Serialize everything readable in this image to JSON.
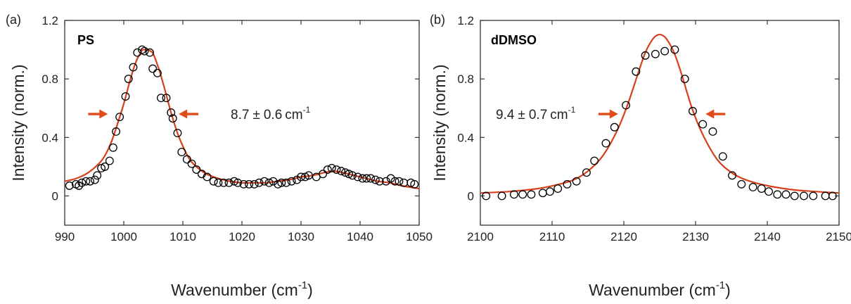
{
  "colors": {
    "fit": "#d6401c",
    "arrow": "#e14b18",
    "marker": "#000000",
    "axis": "#222222"
  },
  "chart_data": [
    {
      "type": "scatter",
      "panel_label": "(a)",
      "sample_label": "PS",
      "annotation": {
        "value": "8.7",
        "pm": "±",
        "err": "0.6",
        "unit": "cm",
        "unit_exp": "-1",
        "y": 0.56,
        "left_arrow_x": 997.3,
        "right_arrow_x": 1009.3
      },
      "xlabel": {
        "text": "Wavenumber (cm",
        "sup": "-1",
        "close": ")"
      },
      "ylabel": "Intensity (norm.)",
      "xlim": [
        990,
        1050
      ],
      "ylim": [
        -0.2,
        1.2
      ],
      "xticks": [
        "990",
        "1000",
        "1010",
        "1020",
        "1030",
        "1040",
        "1050"
      ],
      "yticks": [
        "0",
        "0.4",
        "0.8",
        "1.2"
      ],
      "series": [
        {
          "kind": "markers",
          "x": [
            990.8,
            991.9,
            992.4,
            992.9,
            993.6,
            994.3,
            995.1,
            995.5,
            996.2,
            996.8,
            997.6,
            998.2,
            998.7,
            999.3,
            1000.3,
            1000.8,
            1001.6,
            1002.3,
            1003.1,
            1003.5,
            1004.4,
            1004.9,
            1005.7,
            1006.3,
            1007.2,
            1008.0,
            1008.3,
            1009.1,
            1009.8,
            1010.7,
            1011.5,
            1012.3,
            1013.2,
            1014.1,
            1015.2,
            1016.0,
            1016.9,
            1017.8,
            1018.7,
            1019.3,
            1020.3,
            1021.2,
            1022.1,
            1022.9,
            1023.8,
            1024.6,
            1025.3,
            1026.1,
            1026.7,
            1027.5,
            1028.4,
            1029.3,
            1030.0,
            1030.7,
            1031.3,
            1032.6,
            1033.7,
            1034.5,
            1035.2,
            1036.0,
            1036.8,
            1037.5,
            1038.1,
            1038.7,
            1039.6,
            1040.4,
            1041.1,
            1041.8,
            1042.6,
            1043.3,
            1044.4,
            1045.2,
            1045.9,
            1046.6,
            1047.4,
            1048.6,
            1049.2
          ],
          "y": [
            0.07,
            0.08,
            0.07,
            0.09,
            0.1,
            0.1,
            0.11,
            0.14,
            0.19,
            0.2,
            0.24,
            0.33,
            0.44,
            0.54,
            0.68,
            0.8,
            0.88,
            0.98,
            1.0,
            0.99,
            0.98,
            0.87,
            0.84,
            0.67,
            0.67,
            0.57,
            0.53,
            0.43,
            0.3,
            0.25,
            0.22,
            0.18,
            0.15,
            0.13,
            0.1,
            0.09,
            0.09,
            0.09,
            0.1,
            0.09,
            0.08,
            0.08,
            0.08,
            0.09,
            0.1,
            0.09,
            0.1,
            0.08,
            0.09,
            0.09,
            0.1,
            0.11,
            0.13,
            0.13,
            0.14,
            0.13,
            0.15,
            0.18,
            0.19,
            0.18,
            0.17,
            0.16,
            0.15,
            0.14,
            0.13,
            0.12,
            0.12,
            0.12,
            0.11,
            0.1,
            0.1,
            0.12,
            0.1,
            0.1,
            0.09,
            0.09,
            0.08
          ]
        },
        {
          "kind": "line",
          "x": [
            990,
            992,
            994,
            996,
            997,
            998,
            999,
            1000,
            1001,
            1002,
            1003,
            1003.5,
            1004,
            1004.5,
            1005,
            1006,
            1007,
            1008,
            1009,
            1010,
            1011,
            1012,
            1014,
            1016,
            1018,
            1020,
            1022,
            1024,
            1026,
            1028,
            1030,
            1032,
            1034,
            1035.5,
            1037,
            1039,
            1041,
            1043,
            1045,
            1047,
            1050
          ],
          "y": [
            0.1,
            0.12,
            0.16,
            0.23,
            0.29,
            0.38,
            0.5,
            0.63,
            0.78,
            0.91,
            0.99,
            1.0,
            1.0,
            0.99,
            0.97,
            0.86,
            0.72,
            0.57,
            0.44,
            0.34,
            0.26,
            0.21,
            0.15,
            0.12,
            0.1,
            0.09,
            0.09,
            0.09,
            0.1,
            0.11,
            0.13,
            0.14,
            0.16,
            0.17,
            0.16,
            0.14,
            0.12,
            0.1,
            0.09,
            0.07,
            0.05
          ]
        }
      ]
    },
    {
      "type": "scatter",
      "panel_label": "(b)",
      "sample_label": "dDMSO",
      "annotation": {
        "value": "9.4",
        "pm": "±",
        "err": "0.7",
        "unit": "cm",
        "unit_exp": "-1",
        "y": 0.56,
        "left_arrow_x": 2119.2,
        "right_arrow_x": 2131.4
      },
      "xlabel": {
        "text": "Wavenumber (cm",
        "sup": "-1",
        "close": ")"
      },
      "ylabel": "Intensity (norm.)",
      "xlim": [
        2100,
        2150
      ],
      "ylim": [
        -0.2,
        1.2
      ],
      "xticks": [
        "2100",
        "2110",
        "2120",
        "2130",
        "2140",
        "2150"
      ],
      "yticks": [
        "0",
        "0.4",
        "0.8",
        "1.2"
      ],
      "series": [
        {
          "kind": "markers",
          "x": [
            2100.8,
            2103.0,
            2104.7,
            2105.9,
            2107.1,
            2108.7,
            2109.7,
            2110.8,
            2112.1,
            2113.4,
            2114.8,
            2115.9,
            2117.5,
            2118.7,
            2120.3,
            2121.7,
            2123.0,
            2124.4,
            2125.7,
            2127.1,
            2128.5,
            2129.6,
            2131.0,
            2132.4,
            2133.8,
            2135.1,
            2136.4,
            2138.0,
            2139.2,
            2140.2,
            2141.4,
            2142.6,
            2143.8,
            2145.1,
            2146.4,
            2148.1,
            2149.1
          ],
          "y": [
            0.0,
            0.0,
            0.01,
            0.01,
            0.01,
            0.02,
            0.03,
            0.05,
            0.08,
            0.1,
            0.16,
            0.24,
            0.36,
            0.47,
            0.62,
            0.85,
            0.96,
            0.97,
            0.99,
            1.0,
            0.8,
            0.58,
            0.49,
            0.44,
            0.27,
            0.14,
            0.08,
            0.06,
            0.05,
            0.03,
            0.01,
            0.01,
            0.0,
            0.0,
            0.0,
            0.0,
            0.0
          ]
        },
        {
          "kind": "line",
          "x": [
            2100,
            2104,
            2108,
            2111,
            2113,
            2115,
            2117,
            2119,
            2120.5,
            2122,
            2123,
            2124,
            2124.7,
            2125.3,
            2126,
            2127,
            2128,
            2129.5,
            2131,
            2133,
            2135,
            2137,
            2140,
            2144,
            2150
          ],
          "y": [
            0.02,
            0.03,
            0.05,
            0.08,
            0.11,
            0.17,
            0.27,
            0.44,
            0.62,
            0.84,
            0.98,
            1.07,
            1.1,
            1.1,
            1.07,
            0.98,
            0.84,
            0.6,
            0.42,
            0.25,
            0.16,
            0.11,
            0.07,
            0.04,
            0.02
          ]
        }
      ]
    }
  ]
}
